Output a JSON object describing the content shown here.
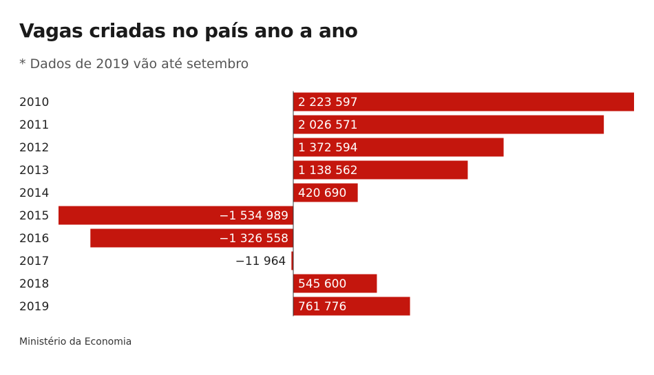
{
  "header": {
    "title": "Vagas criadas no país ano a ano",
    "subtitle": "* Dados de 2019 vão até setembro"
  },
  "source": "Ministério da Economia",
  "colors": {
    "bar": "#c4160d",
    "axis": "#333333",
    "text": "#222222",
    "label_on_bar": "#ffffff"
  },
  "chart_data": {
    "type": "bar",
    "orientation": "horizontal",
    "title": "Vagas criadas no país ano a ano",
    "subtitle": "* Dados de 2019 vão até setembro",
    "categories": [
      "2010",
      "2011",
      "2012",
      "2013",
      "2014",
      "2015",
      "2016",
      "2017",
      "2018",
      "2019"
    ],
    "values": [
      2223597,
      2026571,
      1372594,
      1138562,
      420690,
      -1534989,
      -1326558,
      -11964,
      545600,
      761776
    ],
    "labels": [
      "2 223 597",
      "2 026 571",
      "1 372 594",
      "1 138 562",
      "420 690",
      "−1 534 989",
      "−1 326 558",
      "−11 964",
      "545 600",
      "761 776"
    ],
    "xlim": [
      -1534989,
      2223597
    ],
    "grid": false,
    "legend": "none"
  }
}
